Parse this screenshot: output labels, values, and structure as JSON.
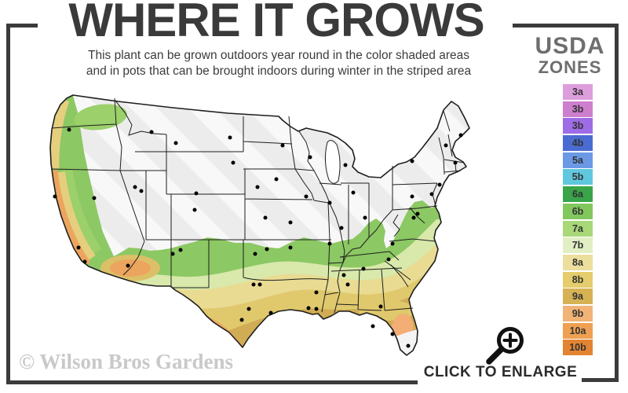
{
  "header": {
    "title": "WHERE IT GROWS",
    "subtitle_line1": "This plant can be grown outdoors year round in the color shaded areas",
    "subtitle_line2": "and in pots that can be brought indoors during winter in the striped area"
  },
  "legend": {
    "title_line1": "USDA",
    "title_line2": "ZONES",
    "zones": [
      {
        "label": "3a",
        "color": "#dd9edd"
      },
      {
        "label": "3b",
        "color": "#cd7fce"
      },
      {
        "label": "3b",
        "color": "#9e6ce6"
      },
      {
        "label": "4b",
        "color": "#4a6cd2"
      },
      {
        "label": "5a",
        "color": "#6b99e6"
      },
      {
        "label": "5b",
        "color": "#60c8de"
      },
      {
        "label": "6a",
        "color": "#39a44a"
      },
      {
        "label": "6b",
        "color": "#82c75e"
      },
      {
        "label": "7a",
        "color": "#a8d878"
      },
      {
        "label": "7b",
        "color": "#e2efc4"
      },
      {
        "label": "8a",
        "color": "#ecdf9d"
      },
      {
        "label": "8b",
        "color": "#e5cc6c"
      },
      {
        "label": "9a",
        "color": "#d6b254"
      },
      {
        "label": "9b",
        "color": "#f2b377"
      },
      {
        "label": "10a",
        "color": "#efa052"
      },
      {
        "label": "10b",
        "color": "#e28432"
      }
    ]
  },
  "map": {
    "region": "United States",
    "colors": {
      "striped_cold_area": "#ececec",
      "stripe": "#ffffff",
      "outline": "#1e1e1e",
      "green_band": "#8cc863",
      "pale_green_band": "#d8e9ab",
      "pale_yellow_band": "#e9db92",
      "yellow_band": "#e0c96d",
      "gold_band": "#d0ad55",
      "orange_patch": "#eca55e",
      "florida_orange": "#f2ae74",
      "florida_tip": "#f4f4f4",
      "city_dot": "#000000"
    }
  },
  "footer": {
    "watermark": "© Wilson Bros Gardens",
    "enlarge_label": "CLICK TO ENLARGE"
  }
}
